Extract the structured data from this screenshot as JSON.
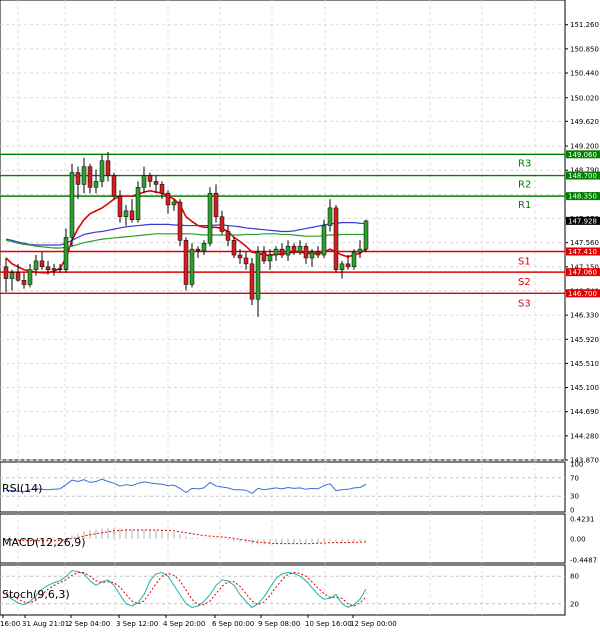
{
  "chart_data": [
    {
      "type": "candlestick",
      "panel": "main",
      "ylim": [
        143.87,
        151.5
      ],
      "y_ticks": [
        "151.260",
        "150.850",
        "150.440",
        "150.020",
        "149.620",
        "149.200",
        "148.790",
        "148.380",
        "147.970",
        "147.560",
        "147.150",
        "146.740",
        "146.330",
        "145.920",
        "145.510",
        "145.100",
        "144.690",
        "144.280",
        "143.870"
      ],
      "x_tick_labels": [
        "16:00",
        "31 Aug 21:01",
        "2 Sep 04:00",
        "3 Sep 12:00",
        "4 Sep 20:00",
        "6 Sep 00:00",
        "9 Sep 08:00",
        "10 Sep 16:00",
        "12 Sep 00:00"
      ],
      "current_price": "147.928",
      "levels": [
        {
          "name": "R3",
          "value": 149.06,
          "label": "149.060",
          "color": "#008000"
        },
        {
          "name": "R2",
          "value": 148.7,
          "label": "148.700",
          "color": "#008000"
        },
        {
          "name": "R1",
          "value": 148.35,
          "label": "148.350",
          "color": "#008000"
        },
        {
          "name": "S1",
          "value": 147.41,
          "label": "147.410",
          "color": "#e00000"
        },
        {
          "name": "S2",
          "value": 147.06,
          "label": "147.060",
          "color": "#e00000"
        },
        {
          "name": "S3",
          "value": 146.7,
          "label": "146.700",
          "color": "#e00000"
        }
      ],
      "candles": [
        [
          147.15,
          147.3,
          146.72,
          146.95
        ],
        [
          146.95,
          147.1,
          146.75,
          147.05
        ],
        [
          147.05,
          147.2,
          146.9,
          146.92
        ],
        [
          146.92,
          147.05,
          146.78,
          146.85
        ],
        [
          146.85,
          147.2,
          146.8,
          147.1
        ],
        [
          147.1,
          147.35,
          147.0,
          147.25
        ],
        [
          147.25,
          147.4,
          147.1,
          147.15
        ],
        [
          147.15,
          147.25,
          147.02,
          147.1
        ],
        [
          147.1,
          147.2,
          147.0,
          147.12
        ],
        [
          147.12,
          147.2,
          147.05,
          147.1
        ],
        [
          147.1,
          147.8,
          147.05,
          147.65
        ],
        [
          147.65,
          148.9,
          147.5,
          148.75
        ],
        [
          148.75,
          148.85,
          148.3,
          148.55
        ],
        [
          148.55,
          149.0,
          148.4,
          148.85
        ],
        [
          148.85,
          148.9,
          148.4,
          148.5
        ],
        [
          148.5,
          148.8,
          148.4,
          148.6
        ],
        [
          148.6,
          149.05,
          148.5,
          148.95
        ],
        [
          148.95,
          149.1,
          148.6,
          148.7
        ],
        [
          148.7,
          148.75,
          148.3,
          148.35
        ],
        [
          148.35,
          148.45,
          147.9,
          148.0
        ],
        [
          148.0,
          148.2,
          147.85,
          148.1
        ],
        [
          148.1,
          148.3,
          147.9,
          147.95
        ],
        [
          147.95,
          148.6,
          147.9,
          148.5
        ],
        [
          148.5,
          148.85,
          148.4,
          148.7
        ],
        [
          148.7,
          148.75,
          148.5,
          148.6
        ],
        [
          148.6,
          148.7,
          148.4,
          148.55
        ],
        [
          148.55,
          148.6,
          148.3,
          148.4
        ],
        [
          148.4,
          148.45,
          148.05,
          148.2
        ],
        [
          148.2,
          148.3,
          148.1,
          148.25
        ],
        [
          148.25,
          148.3,
          147.5,
          147.6
        ],
        [
          147.6,
          147.65,
          146.75,
          146.85
        ],
        [
          146.85,
          147.55,
          146.8,
          147.45
        ],
        [
          147.45,
          147.5,
          147.3,
          147.42
        ],
        [
          147.42,
          147.6,
          147.35,
          147.55
        ],
        [
          147.55,
          148.5,
          147.5,
          148.4
        ],
        [
          148.4,
          148.55,
          147.9,
          148.0
        ],
        [
          148.0,
          148.1,
          147.7,
          147.75
        ],
        [
          147.75,
          147.85,
          147.5,
          147.6
        ],
        [
          147.6,
          147.65,
          147.3,
          147.35
        ],
        [
          147.35,
          147.45,
          147.2,
          147.3
        ],
        [
          147.3,
          147.4,
          147.1,
          147.2
        ],
        [
          147.2,
          147.3,
          146.5,
          146.6
        ],
        [
          146.6,
          147.5,
          146.3,
          147.4
        ],
        [
          147.4,
          147.5,
          147.2,
          147.25
        ],
        [
          147.25,
          147.45,
          147.1,
          147.35
        ],
        [
          147.35,
          147.5,
          147.25,
          147.45
        ],
        [
          147.45,
          147.55,
          147.3,
          147.35
        ],
        [
          147.35,
          147.6,
          147.25,
          147.5
        ],
        [
          147.5,
          147.55,
          147.35,
          147.4
        ],
        [
          147.4,
          147.6,
          147.35,
          147.5
        ],
        [
          147.5,
          147.55,
          147.2,
          147.3
        ],
        [
          147.3,
          147.45,
          147.15,
          147.4
        ],
        [
          147.4,
          147.5,
          147.3,
          147.35
        ],
        [
          147.35,
          147.95,
          147.3,
          147.85
        ],
        [
          147.85,
          148.3,
          147.75,
          148.15
        ],
        [
          148.15,
          148.2,
          147.05,
          147.1
        ],
        [
          147.1,
          147.25,
          146.95,
          147.2
        ],
        [
          147.2,
          147.35,
          147.1,
          147.15
        ],
        [
          147.15,
          147.45,
          147.1,
          147.4
        ],
        [
          147.4,
          147.6,
          147.3,
          147.45
        ],
        [
          147.45,
          147.95,
          147.4,
          147.93
        ]
      ],
      "series": [
        {
          "color": "#e00000",
          "values": [
            147.3,
            147.2,
            147.15,
            147.1,
            147.08,
            147.06,
            147.05,
            147.05,
            147.08,
            147.12,
            147.3,
            147.6,
            147.8,
            147.95,
            148.05,
            148.1,
            148.15,
            148.22,
            148.3,
            148.35,
            148.35,
            148.35,
            148.38,
            148.42,
            148.44,
            148.42,
            148.4,
            148.35,
            148.3,
            148.2,
            148.0,
            147.92,
            147.85,
            147.82,
            147.82,
            147.82,
            147.8,
            147.75,
            147.65,
            147.58,
            147.5,
            147.4,
            147.38,
            147.35,
            147.35,
            147.36,
            147.37,
            147.38,
            147.4,
            147.4,
            147.38,
            147.38,
            147.37,
            147.4,
            147.45,
            147.4,
            147.35,
            147.32,
            147.35,
            147.38,
            147.45
          ]
        },
        {
          "color": "#3a3ad0",
          "values": [
            147.62,
            147.6,
            147.57,
            147.55,
            147.53,
            147.52,
            147.52,
            147.52,
            147.52,
            147.52,
            147.55,
            147.6,
            147.65,
            147.7,
            147.72,
            147.74,
            147.75,
            147.77,
            147.79,
            147.81,
            147.83,
            147.84,
            147.85,
            147.86,
            147.87,
            147.87,
            147.87,
            147.87,
            147.86,
            147.86,
            147.85,
            147.85,
            147.85,
            147.85,
            147.85,
            147.86,
            147.86,
            147.85,
            147.84,
            147.83,
            147.81,
            147.8,
            147.79,
            147.78,
            147.77,
            147.76,
            147.75,
            147.75,
            147.76,
            147.78,
            147.8,
            147.82,
            147.84,
            147.86,
            147.88,
            147.89,
            147.9,
            147.9,
            147.9,
            147.89,
            147.88
          ]
        },
        {
          "color": "#2e9a2e",
          "values": [
            147.6,
            147.58,
            147.55,
            147.53,
            147.52,
            147.5,
            147.49,
            147.48,
            147.47,
            147.47,
            147.48,
            147.5,
            147.53,
            147.56,
            147.58,
            147.6,
            147.62,
            147.63,
            147.64,
            147.65,
            147.66,
            147.67,
            147.68,
            147.69,
            147.7,
            147.71,
            147.71,
            147.71,
            147.71,
            147.71,
            147.71,
            147.71,
            147.7,
            147.69,
            147.69,
            147.69,
            147.69,
            147.69,
            147.69,
            147.69,
            147.7,
            147.7,
            147.7,
            147.71,
            147.71,
            147.71,
            147.7,
            147.7,
            147.69,
            147.68,
            147.67,
            147.67,
            147.67,
            147.68,
            147.69,
            147.69,
            147.7,
            147.7,
            147.7,
            147.7,
            147.7
          ]
        }
      ]
    },
    {
      "type": "line",
      "panel": "rsi",
      "title": "RSI(14)",
      "ylim": [
        0,
        100
      ],
      "y_ticks": [
        "100",
        "70",
        "30",
        "0"
      ],
      "series": [
        {
          "color": "#3a6fd8",
          "values": [
            42,
            43,
            41,
            40,
            44,
            46,
            45,
            44,
            45,
            46,
            55,
            65,
            62,
            66,
            60,
            62,
            67,
            62,
            58,
            52,
            55,
            53,
            58,
            61,
            59,
            57,
            56,
            53,
            54,
            47,
            38,
            47,
            46,
            48,
            60,
            52,
            50,
            48,
            44,
            44,
            43,
            36,
            47,
            44,
            46,
            48,
            46,
            49,
            47,
            48,
            45,
            47,
            46,
            53,
            57,
            42,
            44,
            45,
            48,
            49,
            56
          ]
        }
      ]
    },
    {
      "type": "bar",
      "panel": "macd",
      "title": "MACD(12,26,9)",
      "ylim": [
        -0.4487,
        0.4231
      ],
      "y_ticks": [
        "0.4231",
        "0.00",
        "-0.4487"
      ],
      "series": [
        {
          "name": "macd",
          "color": "#b0b0b0",
          "values": [
            -0.02,
            -0.03,
            -0.04,
            -0.05,
            -0.05,
            -0.05,
            -0.05,
            -0.04,
            -0.03,
            -0.02,
            0.02,
            0.08,
            0.12,
            0.16,
            0.18,
            0.2,
            0.22,
            0.23,
            0.23,
            0.22,
            0.21,
            0.2,
            0.2,
            0.2,
            0.19,
            0.18,
            0.17,
            0.15,
            0.13,
            0.1,
            0.05,
            0.03,
            0.02,
            0.01,
            0.02,
            0.02,
            0.0,
            -0.02,
            -0.05,
            -0.07,
            -0.09,
            -0.12,
            -0.12,
            -0.12,
            -0.12,
            -0.11,
            -0.11,
            -0.1,
            -0.1,
            -0.09,
            -0.09,
            -0.08,
            -0.08,
            -0.06,
            -0.04,
            -0.06,
            -0.07,
            -0.07,
            -0.06,
            -0.05,
            -0.03
          ]
        },
        {
          "name": "signal",
          "color": "#e00000",
          "values": [
            -0.02,
            -0.02,
            -0.03,
            -0.03,
            -0.04,
            -0.04,
            -0.04,
            -0.04,
            -0.04,
            -0.03,
            -0.02,
            0.01,
            0.03,
            0.06,
            0.09,
            0.11,
            0.13,
            0.15,
            0.17,
            0.18,
            0.19,
            0.19,
            0.19,
            0.19,
            0.19,
            0.19,
            0.18,
            0.18,
            0.17,
            0.15,
            0.13,
            0.11,
            0.09,
            0.07,
            0.06,
            0.05,
            0.04,
            0.03,
            0.01,
            -0.01,
            -0.03,
            -0.05,
            -0.07,
            -0.08,
            -0.09,
            -0.1,
            -0.1,
            -0.1,
            -0.1,
            -0.1,
            -0.1,
            -0.1,
            -0.09,
            -0.09,
            -0.08,
            -0.08,
            -0.08,
            -0.08,
            -0.07,
            -0.07,
            -0.06
          ]
        }
      ]
    },
    {
      "type": "line",
      "panel": "stoch",
      "title": "Stoch(9,6,3)",
      "ylim": [
        0,
        100
      ],
      "y_ticks": [
        "80",
        "20"
      ],
      "series": [
        {
          "color": "#20b0b0",
          "values": [
            40,
            30,
            22,
            18,
            25,
            38,
            52,
            60,
            66,
            70,
            80,
            92,
            90,
            85,
            70,
            60,
            68,
            72,
            60,
            40,
            20,
            15,
            22,
            40,
            70,
            85,
            88,
            80,
            60,
            40,
            20,
            12,
            15,
            25,
            40,
            60,
            72,
            70,
            60,
            40,
            25,
            12,
            20,
            35,
            55,
            75,
            85,
            88,
            86,
            80,
            70,
            55,
            40,
            30,
            32,
            40,
            20,
            12,
            18,
            30,
            52
          ]
        },
        {
          "color": "#e00000",
          "values": [
            45,
            38,
            30,
            24,
            22,
            28,
            40,
            52,
            60,
            66,
            72,
            82,
            88,
            88,
            80,
            70,
            66,
            68,
            66,
            56,
            40,
            26,
            20,
            26,
            44,
            64,
            80,
            86,
            82,
            70,
            50,
            30,
            18,
            18,
            26,
            42,
            58,
            68,
            68,
            58,
            42,
            26,
            18,
            24,
            38,
            56,
            72,
            84,
            88,
            86,
            80,
            68,
            54,
            42,
            34,
            34,
            32,
            20,
            15,
            22,
            35
          ]
        }
      ]
    }
  ]
}
